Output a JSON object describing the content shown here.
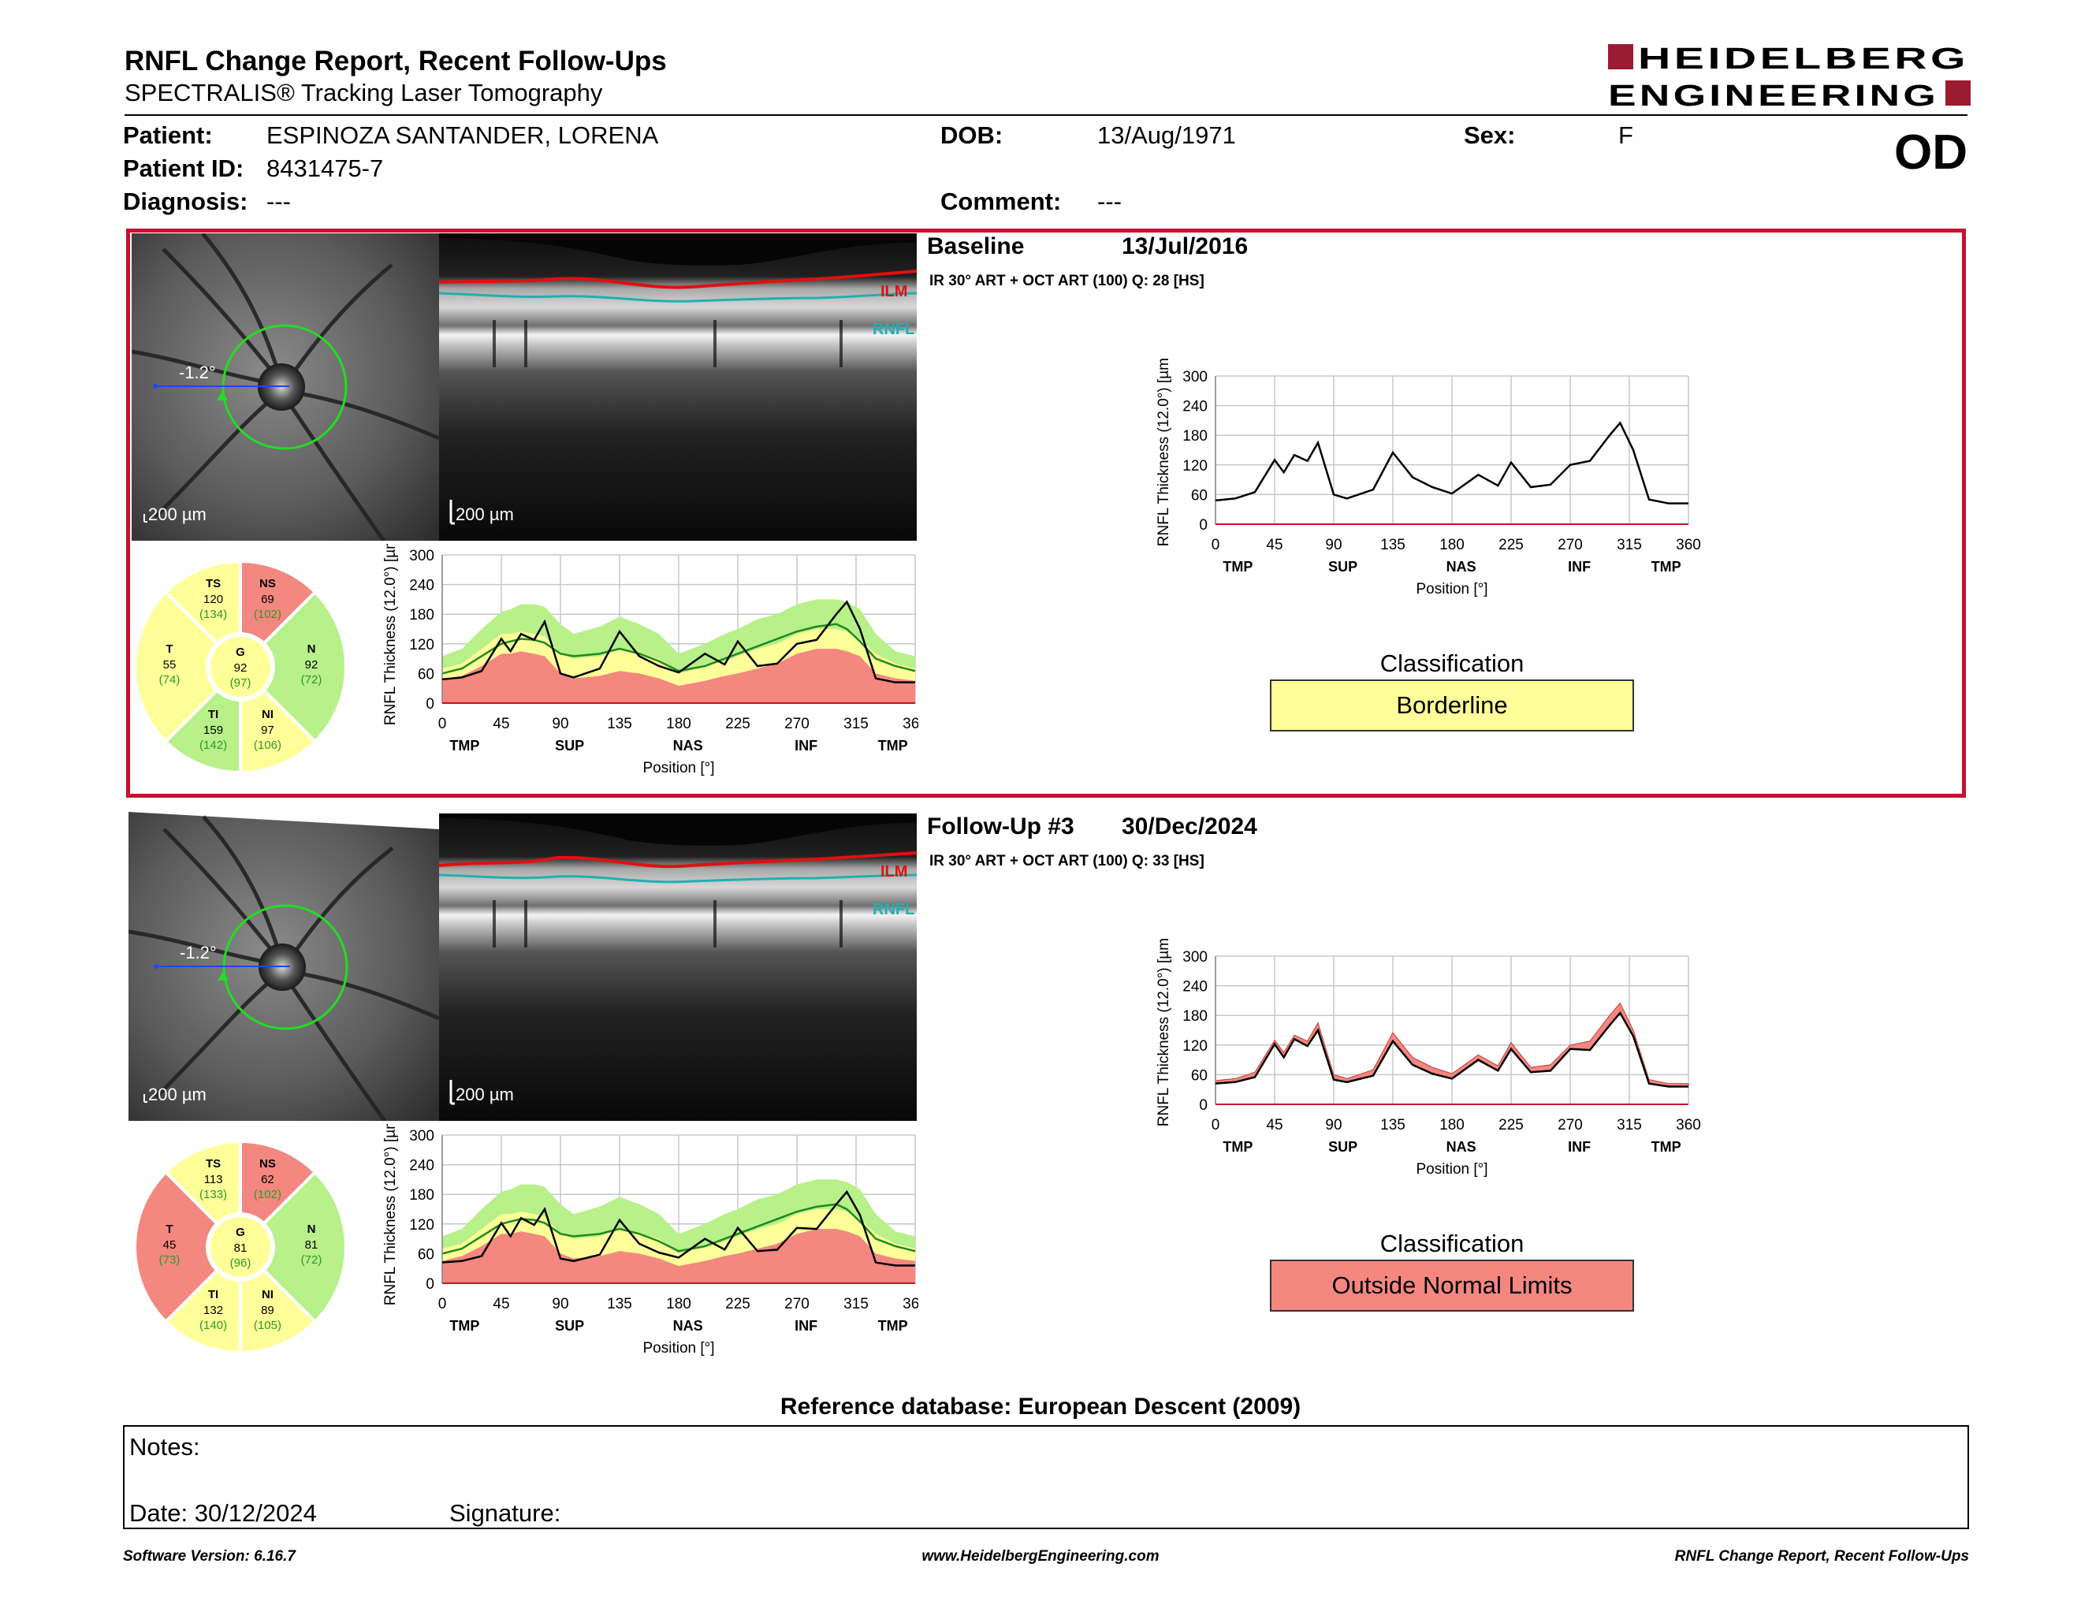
{
  "header": {
    "title": "RNFL Change Report, Recent Follow-Ups",
    "subtitle": "SPECTRALIS® Tracking Laser Tomography",
    "logo_line1": "HEIDELBERG",
    "logo_line2": "ENGINEERING",
    "eye": "OD",
    "patient_label": "Patient:",
    "patient_value": "ESPINOZA SANTANDER, LORENA",
    "patient_id_label": "Patient ID:",
    "patient_id_value": "8431475-7",
    "diagnosis_label": "Diagnosis:",
    "diagnosis_value": "---",
    "dob_label": "DOB:",
    "dob_value": "13/Aug/1971",
    "comment_label": "Comment:",
    "comment_value": "---",
    "sex_label": "Sex:",
    "sex_value": "F"
  },
  "colors": {
    "frame": "#c8102e",
    "within_normal": "#b8f08a",
    "borderline": "#ffff99",
    "outside": "#f4877f",
    "ilm": "#e01010",
    "rnfl": "#20b0b0",
    "circle": "#22dd22"
  },
  "axes": {
    "y_label": "RNFL Thickness (12.0°) [µm]",
    "x_label": "Position [°]",
    "y_ticks": [
      "300",
      "240",
      "180",
      "120",
      "60",
      "0"
    ],
    "x_ticks": [
      "0",
      "45",
      "90",
      "135",
      "180",
      "225",
      "270",
      "315",
      "360"
    ],
    "sectors": [
      "TMP",
      "SUP",
      "NAS",
      "INF",
      "TMP"
    ]
  },
  "baseline": {
    "title": "Baseline",
    "date": "13/Jul/2016",
    "acq": "IR 30° ART + OCT ART (100) Q: 28 [HS]",
    "angle": "-1.2°",
    "scale_fundus": "200 µm",
    "scale_oct": "200 µm",
    "ilm_label": "ILM",
    "rnfl_label": "RNFL",
    "classification_label": "Classification",
    "classification_value": "Borderline",
    "classification_color": "#ffff99",
    "sectors": {
      "TS": {
        "label": "TS",
        "value": "120",
        "normal": "(134)"
      },
      "NS": {
        "label": "NS",
        "value": "69",
        "normal": "(102)"
      },
      "T": {
        "label": "T",
        "value": "55",
        "normal": "(74)"
      },
      "G": {
        "label": "G",
        "value": "92",
        "normal": "(97)"
      },
      "N": {
        "label": "N",
        "value": "92",
        "normal": "(72)"
      },
      "TI": {
        "label": "TI",
        "value": "159",
        "normal": "(142)"
      },
      "NI": {
        "label": "NI",
        "value": "97",
        "normal": "(106)"
      }
    }
  },
  "followup": {
    "title": "Follow-Up #3",
    "date": "30/Dec/2024",
    "acq": "IR 30° ART + OCT ART (100) Q: 33 [HS]",
    "angle": "-1.2°",
    "scale_fundus": "200 µm",
    "scale_oct": "200 µm",
    "ilm_label": "ILM",
    "rnfl_label": "RNFL",
    "classification_label": "Classification",
    "classification_value": "Outside Normal Limits",
    "classification_color": "#f4877f",
    "sectors": {
      "TS": {
        "label": "TS",
        "value": "113",
        "normal": "(133)"
      },
      "NS": {
        "label": "NS",
        "value": "62",
        "normal": "(102)"
      },
      "T": {
        "label": "T",
        "value": "45",
        "normal": "(73)"
      },
      "G": {
        "label": "G",
        "value": "81",
        "normal": "(96)"
      },
      "N": {
        "label": "N",
        "value": "81",
        "normal": "(72)"
      },
      "TI": {
        "label": "TI",
        "value": "132",
        "normal": "(140)"
      },
      "NI": {
        "label": "NI",
        "value": "89",
        "normal": "(105)"
      }
    }
  },
  "chart_data": [
    {
      "type": "line",
      "panel": "baseline",
      "xlabel": "Position [°]",
      "ylabel": "RNFL Thickness (12.0°) [µm]",
      "xlim": [
        0,
        360
      ],
      "ylim": [
        0,
        300
      ],
      "x": [
        0,
        15,
        30,
        45,
        52,
        60,
        70,
        78,
        90,
        100,
        120,
        135,
        150,
        165,
        180,
        200,
        215,
        225,
        240,
        255,
        270,
        285,
        300,
        308,
        318,
        330,
        345,
        360
      ],
      "series": [
        {
          "values": [
            48,
            52,
            65,
            130,
            105,
            140,
            128,
            165,
            60,
            52,
            70,
            145,
            95,
            75,
            62,
            100,
            78,
            125,
            75,
            80,
            120,
            128,
            180,
            205,
            150,
            50,
            42,
            42
          ]
        }
      ],
      "normal_upper": [
        95,
        110,
        150,
        185,
        190,
        200,
        200,
        195,
        160,
        140,
        155,
        175,
        160,
        140,
        100,
        120,
        140,
        150,
        170,
        180,
        200,
        210,
        210,
        205,
        190,
        140,
        105,
        95
      ],
      "borderline_upper": [
        70,
        80,
        110,
        140,
        140,
        145,
        140,
        135,
        100,
        90,
        95,
        110,
        100,
        90,
        60,
        75,
        85,
        95,
        110,
        120,
        140,
        150,
        150,
        145,
        130,
        100,
        80,
        70
      ],
      "outside_upper": [
        45,
        55,
        75,
        100,
        100,
        105,
        100,
        95,
        60,
        50,
        55,
        65,
        60,
        50,
        35,
        45,
        55,
        60,
        70,
        80,
        100,
        110,
        110,
        105,
        95,
        60,
        50,
        45
      ],
      "mean": [
        60,
        70,
        95,
        120,
        125,
        130,
        128,
        122,
        100,
        95,
        100,
        110,
        100,
        85,
        65,
        75,
        90,
        100,
        115,
        130,
        145,
        155,
        160,
        150,
        125,
        90,
        75,
        65
      ]
    },
    {
      "type": "line",
      "panel": "followup",
      "xlabel": "Position [°]",
      "ylabel": "RNFL Thickness (12.0°) [µm]",
      "xlim": [
        0,
        360
      ],
      "ylim": [
        0,
        300
      ],
      "x": [
        0,
        15,
        30,
        45,
        52,
        60,
        70,
        78,
        90,
        100,
        120,
        135,
        150,
        165,
        180,
        200,
        215,
        225,
        240,
        255,
        270,
        285,
        300,
        308,
        318,
        330,
        345,
        360
      ],
      "series": [
        {
          "values": [
            42,
            45,
            55,
            122,
            95,
            132,
            118,
            150,
            50,
            45,
            58,
            128,
            80,
            62,
            52,
            90,
            68,
            112,
            65,
            68,
            112,
            110,
            160,
            185,
            138,
            42,
            36,
            36
          ]
        }
      ]
    }
  ],
  "footer": {
    "reference": "Reference database: European Descent (2009)",
    "notes_label": "Notes:",
    "date_label": "Date: 30/12/2024",
    "signature_label": "Signature:",
    "software": "Software Version: 6.16.7",
    "website": "www.HeidelbergEngineering.com",
    "report_name": "RNFL Change Report, Recent Follow-Ups"
  }
}
